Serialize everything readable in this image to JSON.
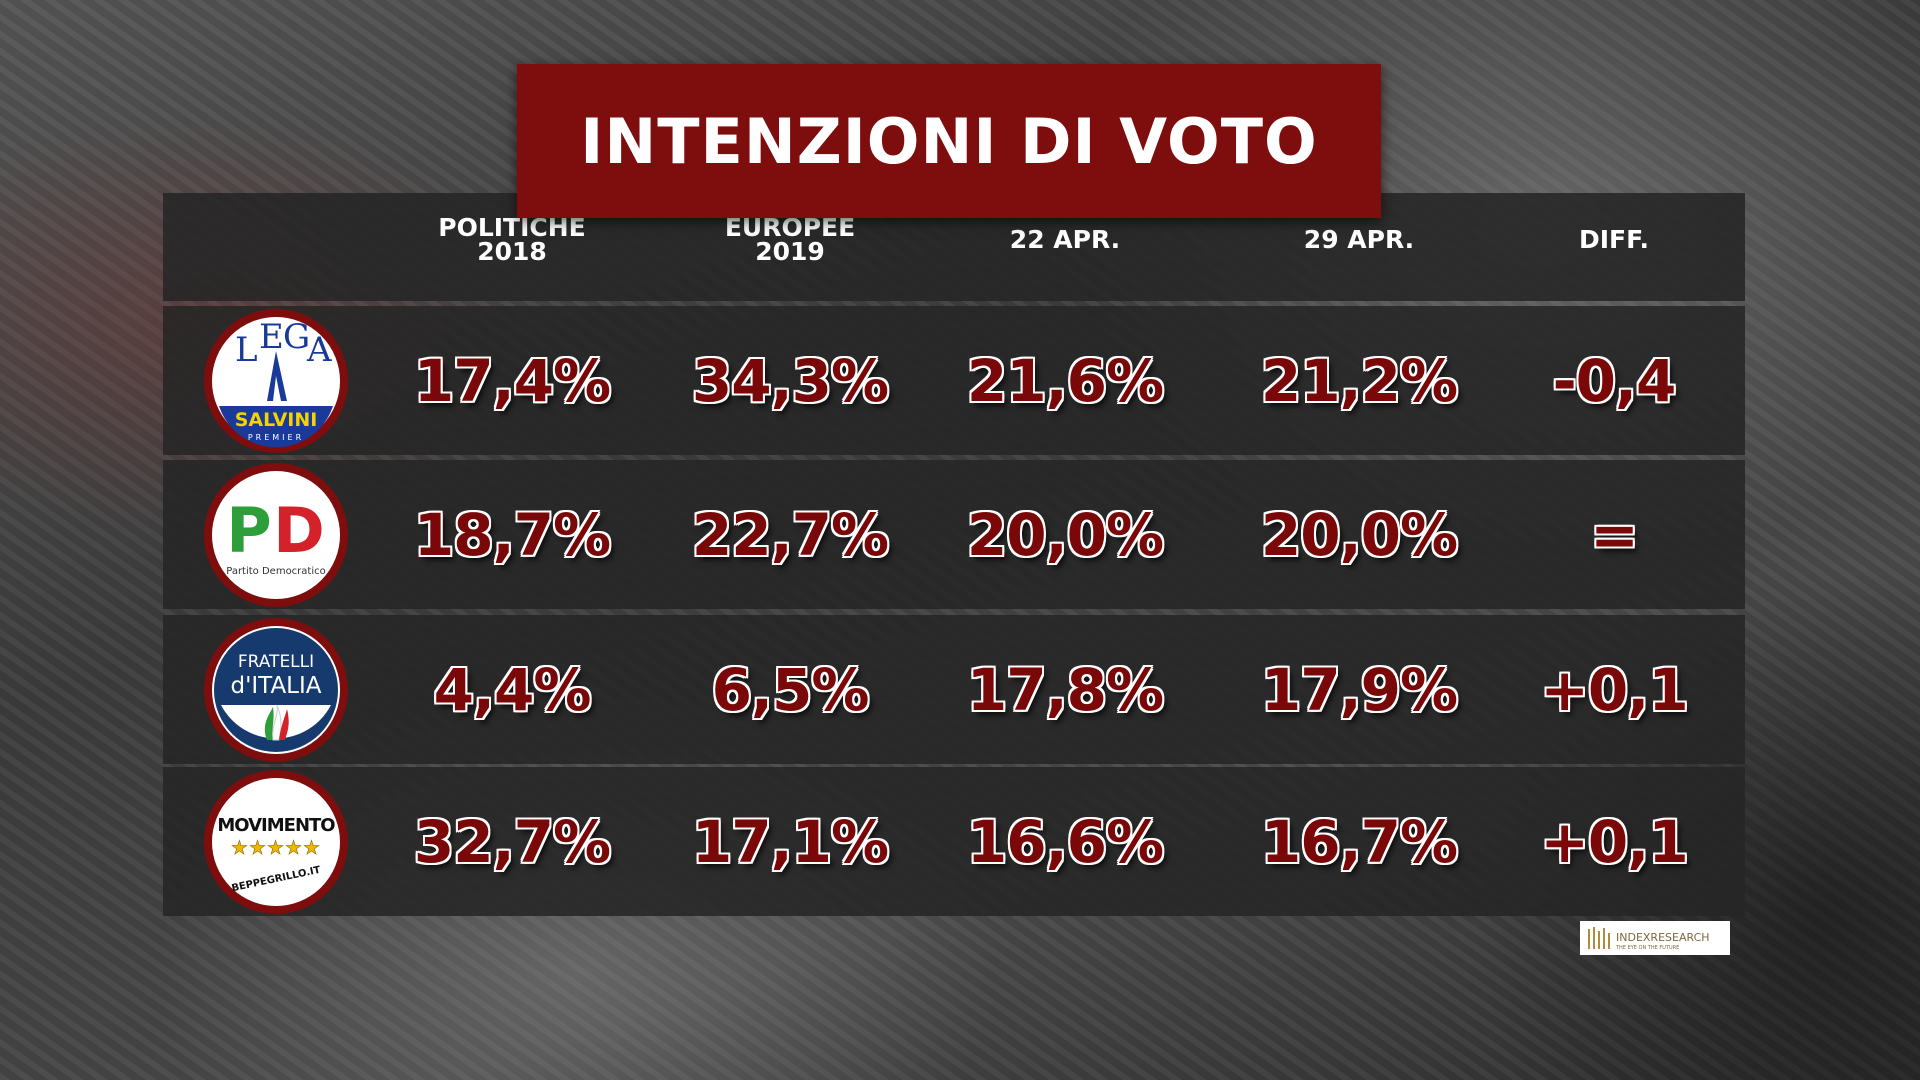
{
  "title": "INTENZIONI DI VOTO",
  "table": {
    "header": [
      [
        "POLITICHE",
        "2018"
      ],
      [
        "EUROPEE",
        "2019"
      ],
      [
        "22 APR."
      ],
      [
        "29 APR."
      ],
      [
        "DIFF."
      ]
    ],
    "rows": [
      {
        "logo": [
          "L",
          "E",
          "G",
          "A",
          "SALVINI",
          "PREMIER"
        ],
        "cells": [
          "17,4%",
          "34,3%",
          "21,6%",
          "21,2%",
          "-0,4"
        ]
      },
      {
        "logo": [
          "P",
          "D",
          "Partito Democratico"
        ],
        "cells": [
          "18,7%",
          "22,7%",
          "20,0%",
          "20,0%",
          "="
        ]
      },
      {
        "logo": [
          "FRATELLI",
          "d'ITALIA"
        ],
        "cells": [
          "4,4%",
          "6,5%",
          "17,8%",
          "17,9%",
          "+0,1"
        ]
      },
      {
        "logo": [
          "MOVIMENTO",
          "BEPPEGRILLO.IT"
        ],
        "cells": [
          "32,7%",
          "17,1%",
          "16,6%",
          "16,7%",
          "+0,1"
        ]
      }
    ]
  },
  "source": {
    "name": "INDEXRESEARCH",
    "tagline": "THE EYE ON THE FUTURE"
  }
}
